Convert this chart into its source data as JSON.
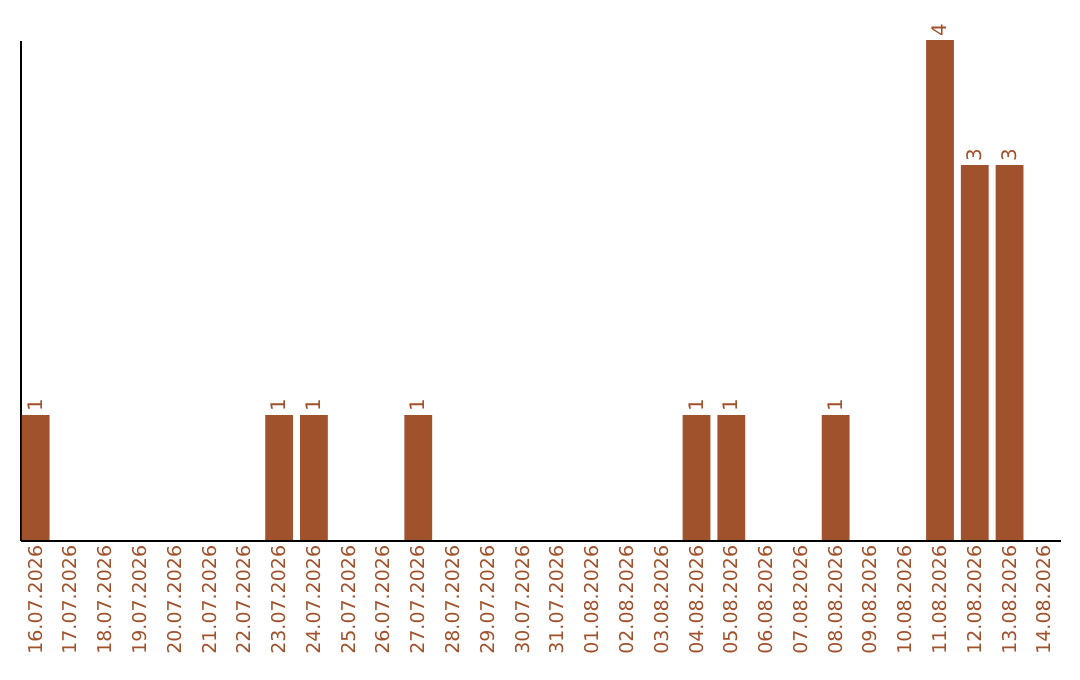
{
  "chart_data": {
    "type": "bar",
    "categories": [
      "16.07.2026",
      "17.07.2026",
      "18.07.2026",
      "19.07.2026",
      "20.07.2026",
      "21.07.2026",
      "22.07.2026",
      "23.07.2026",
      "24.07.2026",
      "25.07.2026",
      "26.07.2026",
      "27.07.2026",
      "28.07.2026",
      "29.07.2026",
      "30.07.2026",
      "31.07.2026",
      "01.08.2026",
      "02.08.2026",
      "03.08.2026",
      "04.08.2026",
      "05.08.2026",
      "06.08.2026",
      "07.08.2026",
      "08.08.2026",
      "09.08.2026",
      "10.08.2026",
      "11.08.2026",
      "12.08.2026",
      "13.08.2026",
      "14.08.2026"
    ],
    "values": [
      1,
      0,
      0,
      0,
      0,
      0,
      0,
      1,
      1,
      0,
      0,
      1,
      0,
      0,
      0,
      0,
      0,
      0,
      0,
      1,
      1,
      0,
      0,
      1,
      0,
      0,
      4,
      3,
      3,
      0
    ],
    "value_labels": [
      "1",
      null,
      null,
      null,
      null,
      null,
      null,
      "1",
      "1",
      null,
      null,
      "1",
      null,
      null,
      null,
      null,
      null,
      null,
      null,
      "1",
      "1",
      null,
      null,
      "1",
      null,
      null,
      "4",
      "3",
      "3",
      null
    ],
    "color": "#a0522d",
    "ylim": [
      0,
      4
    ],
    "tick_labels": "x",
    "grid": false
  }
}
